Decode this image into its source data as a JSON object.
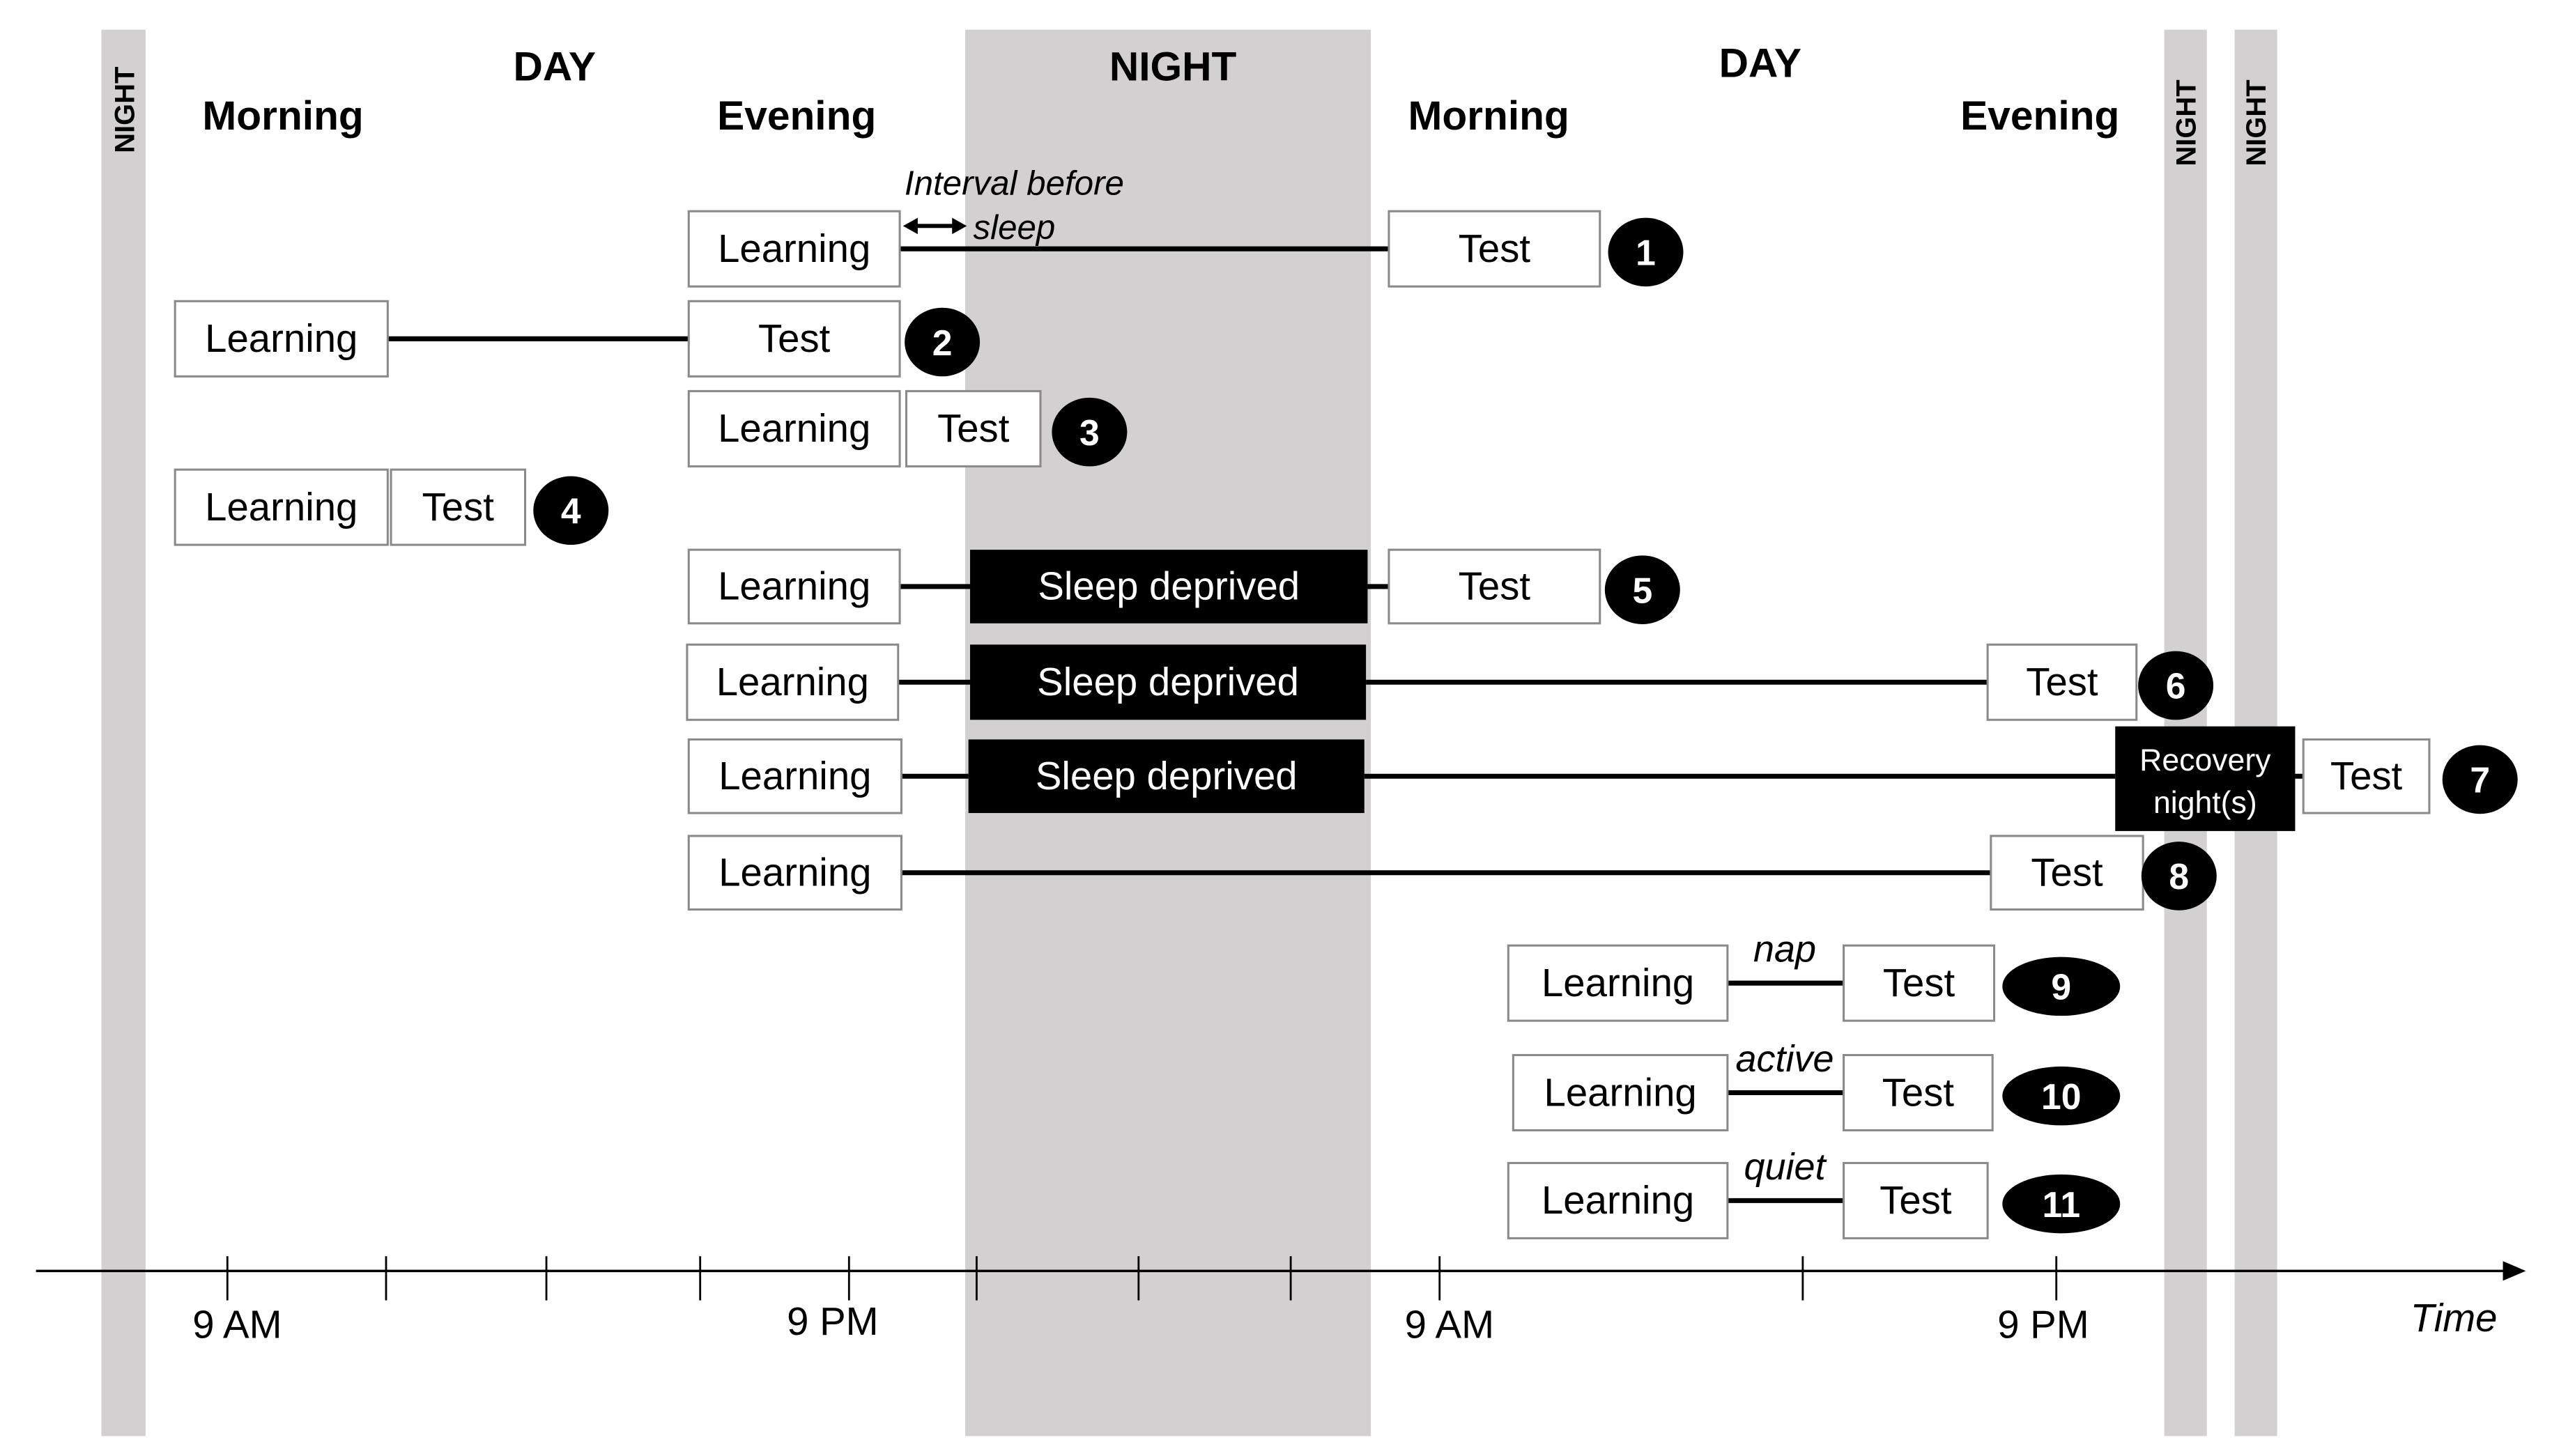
{
  "headers": {
    "day1": "DAY",
    "morning1": "Morning",
    "evening1": "Evening",
    "night_main": "NIGHT",
    "day2": "DAY",
    "morning2": "Morning",
    "evening2": "Evening",
    "night_left": "NIGHT",
    "night_right1": "NIGHT",
    "night_right2": "NIGHT"
  },
  "annotation": {
    "line1": "Interval before",
    "line2": "sleep"
  },
  "colors": {
    "night_band": "#d3d0d1",
    "box_border": "#8a8a8a",
    "dark_box": "#000000"
  },
  "rows": [
    {
      "badge": "1",
      "boxes": [
        "Learning",
        "Test"
      ]
    },
    {
      "badge": "2",
      "boxes": [
        "Learning",
        "Test"
      ]
    },
    {
      "badge": "3",
      "boxes": [
        "Learning",
        "Test"
      ]
    },
    {
      "badge": "4",
      "boxes": [
        "Learning",
        "Test"
      ]
    },
    {
      "badge": "5",
      "boxes": [
        "Learning",
        "Sleep deprived",
        "Test"
      ]
    },
    {
      "badge": "6",
      "boxes": [
        "Learning",
        "Sleep deprived",
        "Test"
      ]
    },
    {
      "badge": "7",
      "boxes": [
        "Learning",
        "Sleep deprived",
        "Recovery",
        "night(s)",
        "Test"
      ]
    },
    {
      "badge": "8",
      "boxes": [
        "Learning",
        "Test"
      ]
    },
    {
      "badge": "9",
      "boxes": [
        "Learning",
        "Test"
      ],
      "interval": "nap"
    },
    {
      "badge": "10",
      "boxes": [
        "Learning",
        "Test"
      ],
      "interval": "active"
    },
    {
      "badge": "11",
      "boxes": [
        "Learning",
        "Test"
      ],
      "interval": "quiet"
    }
  ],
  "axis": {
    "ticks": [
      "9 AM",
      "9 PM",
      "9 AM",
      "9 PM"
    ],
    "label": "Time"
  }
}
